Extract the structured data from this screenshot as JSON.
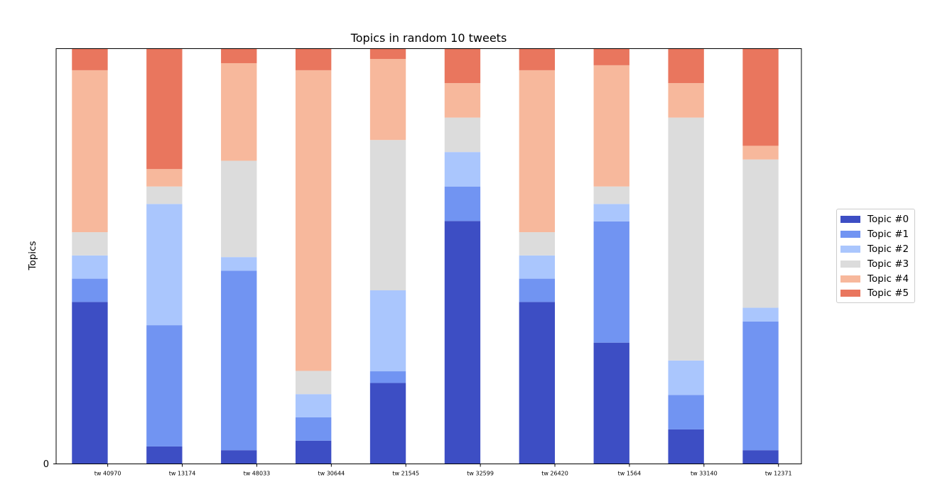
{
  "chart_data": {
    "type": "bar",
    "stacked": true,
    "title": "Topics in random 10 tweets",
    "xlabel": "",
    "ylabel": "Topics",
    "ylim": [
      0,
      1
    ],
    "y_tick_labels": [
      "0"
    ],
    "categories": [
      "tw 40970",
      "tw 13174",
      "tw 48033",
      "tw 30644",
      "tw 21545",
      "tw 32599",
      "tw 26420",
      "tw 1564",
      "tw 33140",
      "tw 12371"
    ],
    "series": [
      {
        "name": "Topic #0",
        "color": "#3d4ec4",
        "values": [
          0.39,
          0.042,
          0.033,
          0.056,
          0.195,
          0.585,
          0.39,
          0.292,
          0.083,
          0.033
        ]
      },
      {
        "name": "Topic #1",
        "color": "#7194f2",
        "values": [
          0.056,
          0.292,
          0.432,
          0.056,
          0.028,
          0.083,
          0.056,
          0.292,
          0.083,
          0.31
        ]
      },
      {
        "name": "Topic #2",
        "color": "#aac6fd",
        "values": [
          0.056,
          0.292,
          0.033,
          0.056,
          0.195,
          0.083,
          0.056,
          0.042,
          0.083,
          0.033
        ]
      },
      {
        "name": "Topic #3",
        "color": "#dcdcdc",
        "values": [
          0.056,
          0.042,
          0.232,
          0.056,
          0.362,
          0.083,
          0.056,
          0.042,
          0.585,
          0.357
        ]
      },
      {
        "name": "Topic #4",
        "color": "#f7b89c",
        "values": [
          0.39,
          0.042,
          0.235,
          0.724,
          0.195,
          0.083,
          0.39,
          0.292,
          0.083,
          0.033
        ]
      },
      {
        "name": "Topic #5",
        "color": "#e9765e",
        "values": [
          0.052,
          0.29,
          0.035,
          0.052,
          0.025,
          0.083,
          0.052,
          0.04,
          0.083,
          0.234
        ]
      }
    ],
    "grid": false,
    "legend_position": "center-right"
  }
}
